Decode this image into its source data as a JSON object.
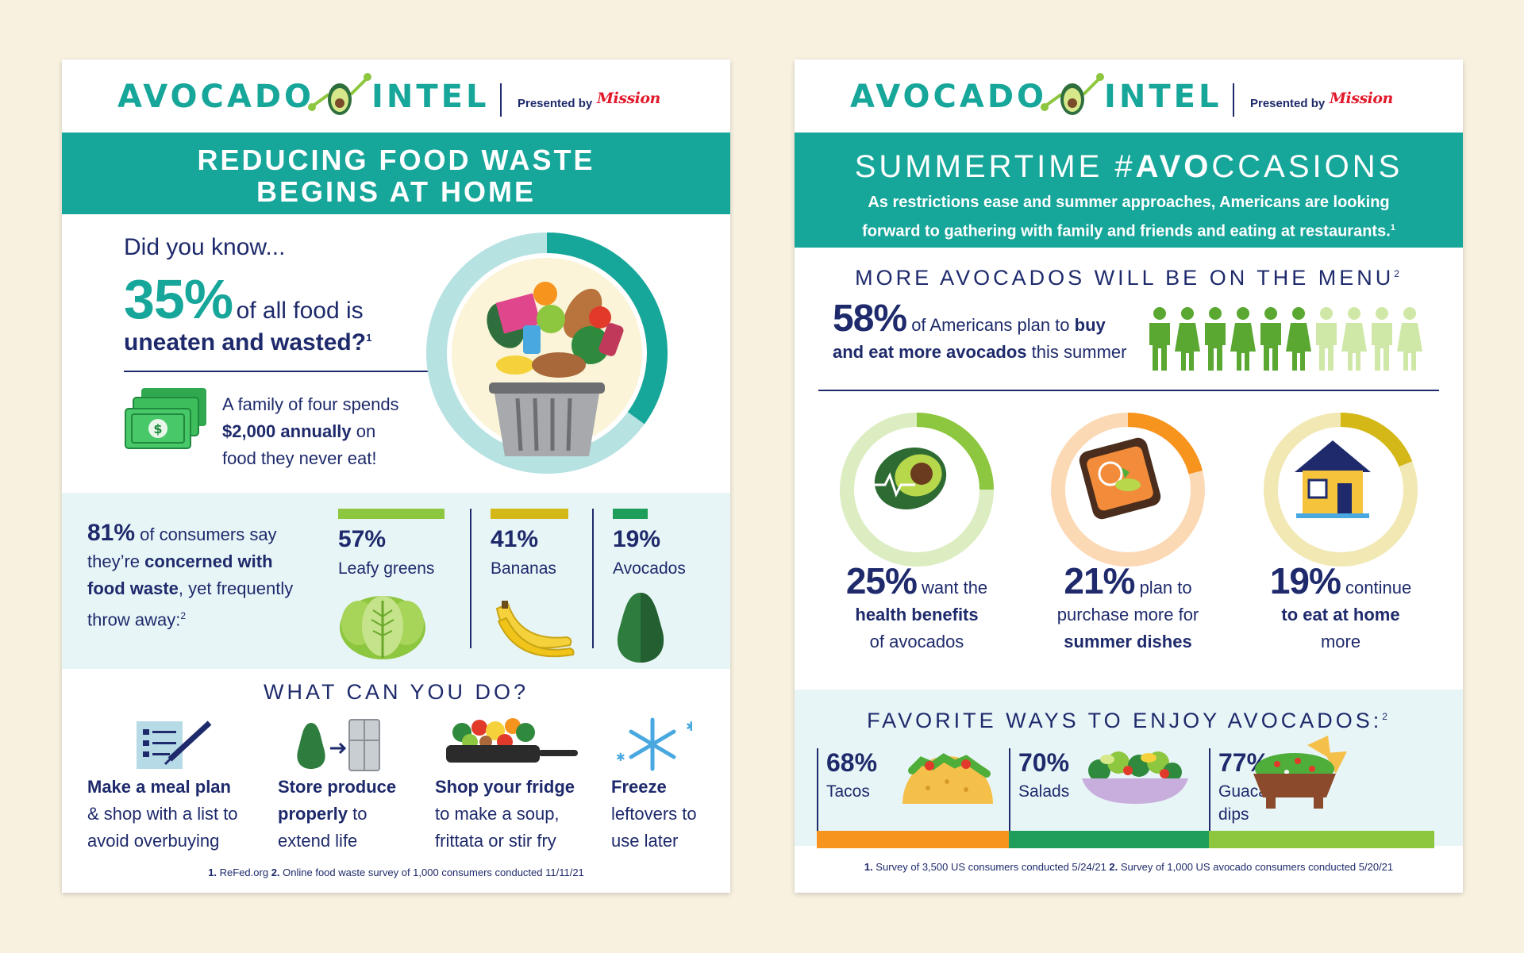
{
  "left": {
    "header": {
      "logo_a": "AVOCADO",
      "logo_b": "INTEL",
      "presented_by": "Presented by",
      "brand": "Mission"
    },
    "banner": {
      "line1": "REDUCING FOOD WASTE",
      "line2": "BEGINS AT HOME"
    },
    "did_you_know": {
      "intro": "Did you know...",
      "big": "35%",
      "after_big": "of all food is",
      "bold_line": "uneaten and wasted?",
      "ref": "1"
    },
    "family": {
      "line1": "A family of four spends",
      "amount": "$2,000 annually",
      "line2_rest": " on",
      "line3": "food they never eat!"
    },
    "concern": {
      "pct": "81%",
      "l1": " of consumers say",
      "l2a": "they’re ",
      "l2b": "concerned with",
      "l3a": "food waste",
      "l3b": ", yet frequently",
      "l4": "throw away:",
      "ref": "2"
    },
    "waste_items": [
      {
        "pct": "57%",
        "label": "Leafy greens",
        "color": "#8dc63f"
      },
      {
        "pct": "41%",
        "label": "Bananas",
        "color": "#d4b817"
      },
      {
        "pct": "19%",
        "label": "Avocados",
        "color": "#1e9e5a"
      }
    ],
    "what_title": "WHAT CAN YOU DO?",
    "actions": [
      {
        "bold": "Make a meal plan",
        "rest1": "& shop with a list to",
        "rest2": "avoid overbuying",
        "icon": "meal-plan-icon"
      },
      {
        "bold": "Store produce",
        "bold2": "properly",
        "rest1": " to",
        "rest2": "extend life",
        "icon": "fridge-icon"
      },
      {
        "bold": "Shop your fridge",
        "rest1": "to make a soup,",
        "rest2": "frittata or stir fry",
        "icon": "skillet-icon"
      },
      {
        "bold": "Freeze",
        "rest1": "leftovers to",
        "rest2": "use later",
        "icon": "snowflake-icon"
      }
    ],
    "footnote": {
      "n1": "1.",
      "s1": " ReFed.org  ",
      "n2": "2.",
      "s2": " Online food waste survey of 1,000 consumers conducted 11/11/21"
    }
  },
  "right": {
    "header": {
      "logo_a": "AVOCADO",
      "logo_b": "INTEL",
      "presented_by": "Presented by",
      "brand": "Mission"
    },
    "banner": {
      "title_a": "SUMMERTIME #",
      "title_b": "AVO",
      "title_c": "CCASIONS",
      "sub1": "As restrictions ease and summer approaches, Americans are looking",
      "sub2": "forward to gathering with family and friends and eating at restaurants.",
      "ref": "1"
    },
    "menu_title": "MORE AVOCADOS WILL BE ON THE MENU",
    "menu_ref": "2",
    "plan": {
      "pct": "58%",
      "l1": " of Americans plan to ",
      "l1b": "buy",
      "l2a": "and eat more avocados",
      "l2b": " this summer"
    },
    "people_highlighted": 6,
    "people_total": 10,
    "rings": [
      {
        "pct": "25%",
        "after": " want the",
        "l2": "health benefits",
        "l2bold": true,
        "l3": "of avocados",
        "l3bold": false,
        "value": 25,
        "color": "#8dc63f",
        "track": "#dcedc1",
        "icon": "avocado-heartbeat-icon"
      },
      {
        "pct": "21%",
        "after": " plan to",
        "l2": "purchase more for",
        "l2bold": false,
        "l3": "summer dishes",
        "l3bold": true,
        "value": 21,
        "color": "#f7941d",
        "track": "#fcd9b5",
        "icon": "avocado-toast-icon"
      },
      {
        "pct": "19%",
        "after": " continue",
        "l2": "to eat at home",
        "l2bold": true,
        "l3": "more",
        "l3bold": false,
        "value": 19,
        "color": "#d4b817",
        "track": "#f2e8b4",
        "icon": "house-icon"
      }
    ],
    "fav_title": "FAVORITE WAYS TO ENJOY AVOCADOS:",
    "fav_ref": "2",
    "favorites": [
      {
        "pct": "68%",
        "label1": "Tacos",
        "label2": "",
        "color": "#f7941d",
        "icon": "taco-icon"
      },
      {
        "pct": "70%",
        "label1": "Salads",
        "label2": "",
        "color": "#1e9e5a",
        "icon": "salad-icon"
      },
      {
        "pct": "77%",
        "label1": "Guacamole/",
        "label2": "dips",
        "color": "#8dc63f",
        "icon": "guacamole-icon"
      }
    ],
    "footnote": {
      "n1": "1.",
      "s1": " Survey of 3,500 US consumers conducted 5/24/21  ",
      "n2": "2.",
      "s2": " Survey of 1,000 US avocado consumers conducted 5/20/21"
    }
  }
}
